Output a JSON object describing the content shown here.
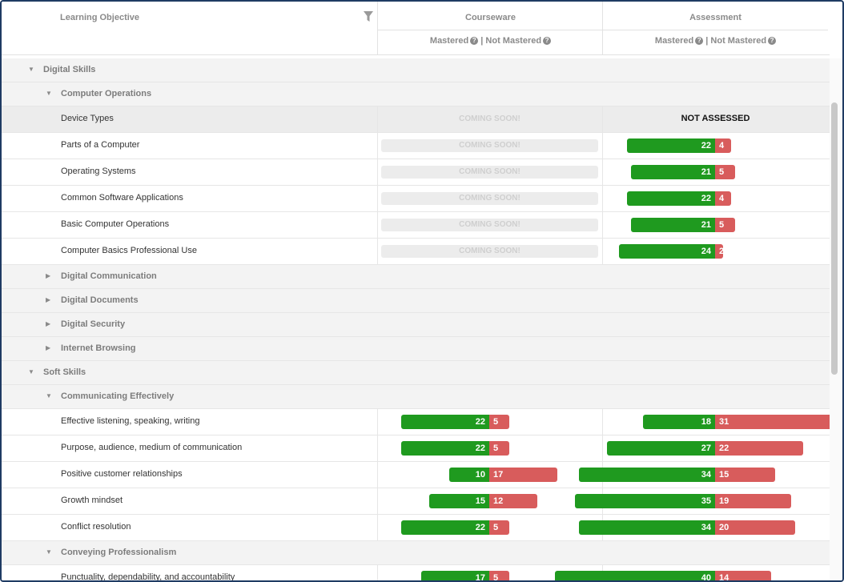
{
  "header": {
    "learning_objective": "Learning Objective",
    "courseware": "Courseware",
    "assessment": "Assessment",
    "mastered": "Mastered",
    "not_mastered": "Not Mastered",
    "separator": "|",
    "help_glyph": "?"
  },
  "status": {
    "coming_soon": "COMING SOON!",
    "not_assessed": "NOT ASSESSED"
  },
  "colors": {
    "mastered": "#1f9a1f",
    "not_mastered": "#d85c5c"
  },
  "rows": [
    {
      "type": "group",
      "level": 0,
      "expanded": true,
      "label": "Digital Skills"
    },
    {
      "type": "group",
      "level": 1,
      "expanded": true,
      "label": "Computer Operations"
    },
    {
      "type": "item",
      "label": "Device Types",
      "courseware": "soon-plain",
      "assessment": "not-assessed",
      "highlight": true
    },
    {
      "type": "item",
      "label": "Parts of a Computer",
      "courseware": "soon",
      "assessment": {
        "m": 22,
        "n": 4
      }
    },
    {
      "type": "item",
      "label": "Operating Systems",
      "courseware": "soon",
      "assessment": {
        "m": 21,
        "n": 5
      }
    },
    {
      "type": "item",
      "label": "Common Software Applications",
      "courseware": "soon",
      "assessment": {
        "m": 22,
        "n": 4
      }
    },
    {
      "type": "item",
      "label": "Basic Computer Operations",
      "courseware": "soon",
      "assessment": {
        "m": 21,
        "n": 5
      }
    },
    {
      "type": "item",
      "label": "Computer Basics Professional Use",
      "courseware": "soon",
      "assessment": {
        "m": 24,
        "n": 2
      }
    },
    {
      "type": "group",
      "level": 1,
      "expanded": false,
      "label": "Digital Communication"
    },
    {
      "type": "group",
      "level": 1,
      "expanded": false,
      "label": "Digital Documents"
    },
    {
      "type": "group",
      "level": 1,
      "expanded": false,
      "label": "Digital Security"
    },
    {
      "type": "group",
      "level": 1,
      "expanded": false,
      "label": "Internet Browsing"
    },
    {
      "type": "group",
      "level": 0,
      "expanded": true,
      "label": "Soft Skills"
    },
    {
      "type": "group",
      "level": 1,
      "expanded": true,
      "label": "Communicating Effectively"
    },
    {
      "type": "item",
      "label": "Effective listening, speaking, writing",
      "courseware": {
        "m": 22,
        "n": 5
      },
      "assessment": {
        "m": 18,
        "n": 31
      }
    },
    {
      "type": "item",
      "label": "Purpose, audience, medium of communication",
      "courseware": {
        "m": 22,
        "n": 5
      },
      "assessment": {
        "m": 27,
        "n": 22
      }
    },
    {
      "type": "item",
      "label": "Positive customer relationships",
      "courseware": {
        "m": 10,
        "n": 17
      },
      "assessment": {
        "m": 34,
        "n": 15
      }
    },
    {
      "type": "item",
      "label": "Growth mindset",
      "courseware": {
        "m": 15,
        "n": 12
      },
      "assessment": {
        "m": 35,
        "n": 19
      }
    },
    {
      "type": "item",
      "label": "Conflict resolution",
      "courseware": {
        "m": 22,
        "n": 5
      },
      "assessment": {
        "m": 34,
        "n": 20
      }
    },
    {
      "type": "group",
      "level": 1,
      "expanded": true,
      "label": "Conveying Professionalism"
    },
    {
      "type": "item",
      "label": "Punctuality, dependability, and accountability",
      "courseware": {
        "m": 17,
        "n": 5
      },
      "assessment": {
        "m": 40,
        "n": 14
      }
    }
  ]
}
